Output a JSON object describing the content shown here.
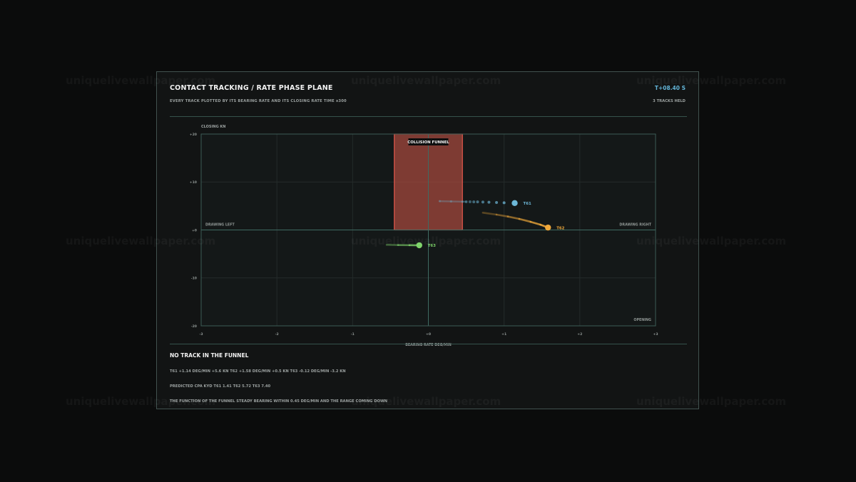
{
  "header": {
    "title": "CONTACT TRACKING / RATE PHASE PLANE",
    "subtitle": "EVERY TRACK PLOTTED BY ITS BEARING RATE AND ITS CLOSING RATE   TIME x300",
    "clock": "T+08.40 S",
    "track_count": "3 TRACKS HELD"
  },
  "chart_data": {
    "type": "scatter",
    "title": "",
    "xlabel": "BEARING RATE DEG/MIN",
    "ylabel": "CLOSING KN",
    "xlim": [
      -3,
      3
    ],
    "ylim": [
      -20,
      20
    ],
    "x_ticks": [
      -3,
      -2,
      -1,
      0,
      1,
      2,
      3
    ],
    "x_tick_labels": [
      "-3",
      "-2",
      "-1",
      "+0",
      "+1",
      "+2",
      "+3"
    ],
    "y_ticks": [
      20,
      10,
      0,
      -10,
      -20
    ],
    "y_tick_labels": [
      "+20",
      "+10",
      "+0",
      "-10",
      "-20"
    ],
    "grid": true,
    "region_labels": {
      "left": "DRAWING LEFT",
      "right": "DRAWING RIGHT",
      "bottom_right": "OPENING"
    },
    "funnel": {
      "label": "COLLISION FUNNEL",
      "x_range": [
        -0.45,
        0.45
      ],
      "y_range": [
        0,
        20
      ],
      "color": "#a8493f"
    },
    "series": [
      {
        "name": "T61",
        "color": "#6db8d8",
        "style": "dots",
        "x": 1.14,
        "y": 5.6,
        "trail": [
          [
            0.15,
            6.0
          ],
          [
            0.3,
            5.95
          ],
          [
            0.45,
            5.9
          ],
          [
            0.5,
            5.88
          ],
          [
            0.55,
            5.87
          ],
          [
            0.6,
            5.86
          ],
          [
            0.65,
            5.85
          ],
          [
            0.72,
            5.82
          ],
          [
            0.8,
            5.78
          ],
          [
            0.9,
            5.72
          ],
          [
            1.0,
            5.67
          ],
          [
            1.14,
            5.6
          ]
        ]
      },
      {
        "name": "T62",
        "color": "#f0a83a",
        "style": "streak",
        "x": 1.58,
        "y": 0.5,
        "trail": [
          [
            0.72,
            3.6
          ],
          [
            0.9,
            3.2
          ],
          [
            1.05,
            2.8
          ],
          [
            1.2,
            2.3
          ],
          [
            1.35,
            1.7
          ],
          [
            1.48,
            1.1
          ],
          [
            1.58,
            0.5
          ]
        ]
      },
      {
        "name": "T63",
        "color": "#7ed36a",
        "style": "streak",
        "x": -0.12,
        "y": -3.2,
        "trail": [
          [
            -0.55,
            -3.1
          ],
          [
            -0.4,
            -3.15
          ],
          [
            -0.25,
            -3.18
          ],
          [
            -0.12,
            -3.2
          ]
        ]
      }
    ]
  },
  "footer": {
    "status": "NO TRACK IN THE FUNNEL",
    "rates": "T61 +1.14 DEG/MIN +5.6 KN   T62 +1.58 DEG/MIN +0.5 KN   T63 -0.12 DEG/MIN -3.2 KN",
    "cpa": "PREDICTED CPA KYD   T61 1.41   T62 5.72   T63 7.40",
    "note": "THE FUNCTION OF THE FUNNEL   STEADY BEARING WITHIN 0.45 DEG/MIN AND THE RANGE COMING DOWN"
  },
  "watermark": "uniquelivewallpaper.com"
}
